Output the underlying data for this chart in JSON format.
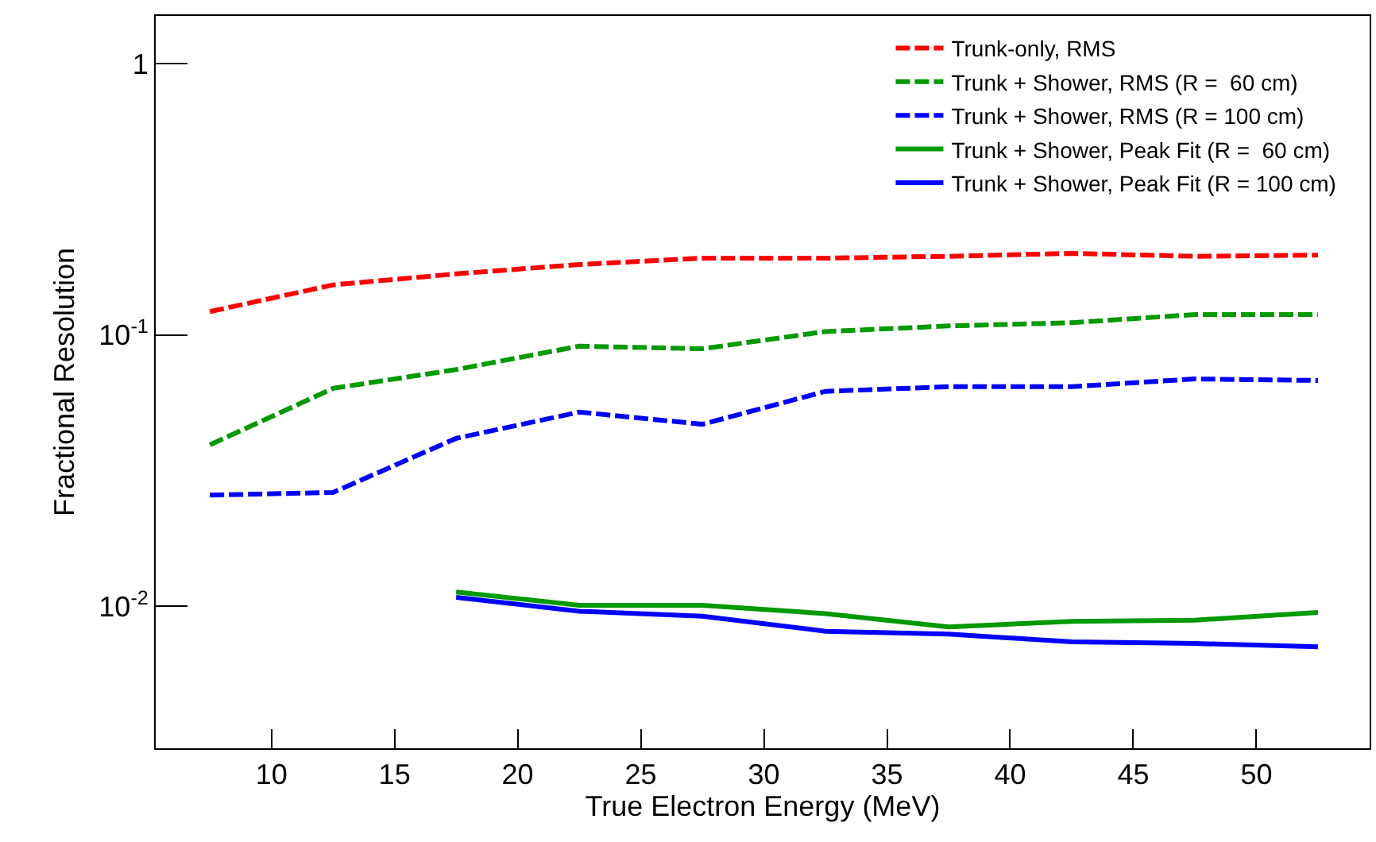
{
  "chart_data": {
    "type": "line",
    "xlabel": "True Electron Energy (MeV)",
    "ylabel": "Fractional Resolution",
    "x": [
      7.5,
      12.5,
      17.5,
      22.5,
      27.5,
      32.5,
      37.5,
      42.5,
      47.5,
      52.5
    ],
    "series": [
      {
        "name": "Trunk-only, RMS",
        "color": "#ff0000",
        "line_style": "dashed",
        "values": [
          0.122,
          0.153,
          0.168,
          0.182,
          0.192,
          0.192,
          0.195,
          0.2,
          0.195,
          0.197
        ]
      },
      {
        "name": "Trunk + Shower, RMS (R =  60 cm)",
        "color": "#009900",
        "line_style": "dashed",
        "values": [
          0.0394,
          0.0636,
          0.0746,
          0.091,
          0.089,
          0.103,
          0.108,
          0.111,
          0.119,
          0.119
        ]
      },
      {
        "name": "Trunk + Shower, RMS (R = 100 cm)",
        "color": "#0000ff",
        "line_style": "dashed",
        "values": [
          0.0257,
          0.0263,
          0.0416,
          0.052,
          0.0469,
          0.062,
          0.0645,
          0.0645,
          0.0689,
          0.068
        ]
      },
      {
        "name": "Trunk + Shower, Peak Fit (R =  60 cm)",
        "color": "#009900",
        "line_style": "solid",
        "values": [
          null,
          null,
          0.0113,
          0.0101,
          0.0101,
          0.0094,
          0.0084,
          0.0088,
          0.0089,
          0.0095
        ]
      },
      {
        "name": "Trunk + Shower, Peak Fit (R = 100 cm)",
        "color": "#0000ff",
        "line_style": "solid",
        "values": [
          null,
          null,
          0.0108,
          0.0096,
          0.0092,
          0.0081,
          0.0079,
          0.0074,
          0.0073,
          0.0071
        ]
      }
    ],
    "log": "y",
    "xlim": [
      5.3,
      54.6
    ],
    "xticks": [
      10,
      15,
      20,
      25,
      30,
      35,
      40,
      45,
      50
    ],
    "ylim": [
      0.003,
      1.5
    ],
    "yticks": [
      {
        "value": 0.01,
        "label": "10$^{-2}$"
      },
      {
        "value": 0.1,
        "label": "10$^{-1}$"
      },
      1
    ],
    "grid": false,
    "legend": "top right",
    "marker": "none"
  }
}
